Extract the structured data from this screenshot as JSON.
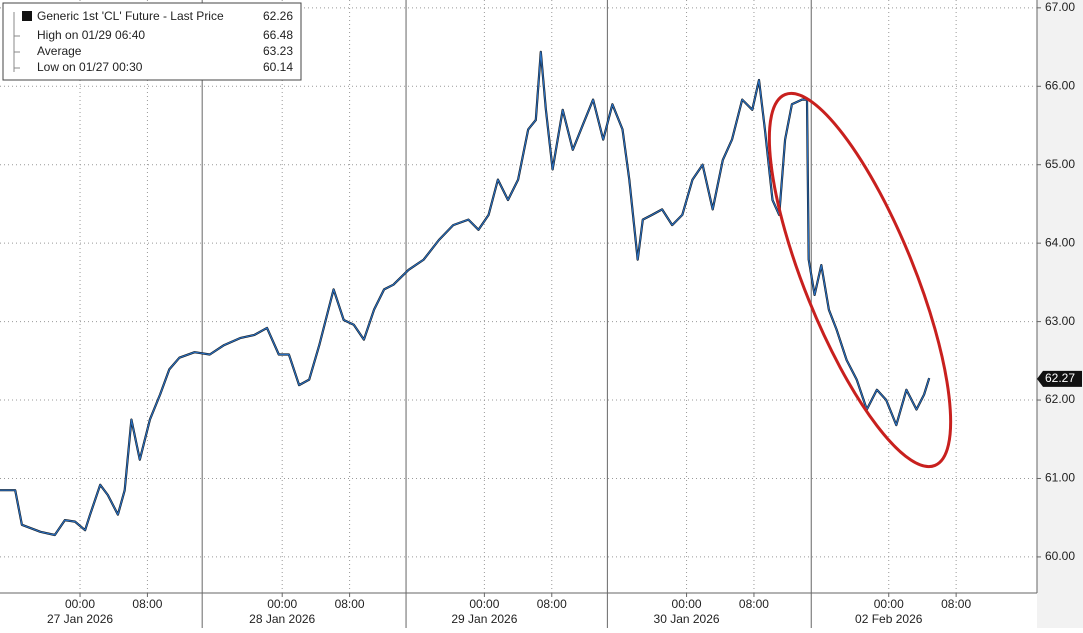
{
  "chart_data": {
    "type": "line",
    "legend": {
      "title": "Generic 1st 'CL' Future - Last Price",
      "title_value": 62.26,
      "rows": [
        {
          "label": "High on 01/29 06:40",
          "value": 66.48
        },
        {
          "label": "Average",
          "value": 63.23
        },
        {
          "label": "Low on 01/27 00:30",
          "value": 60.14
        }
      ]
    },
    "last_price_tag": 62.27,
    "series": [
      {
        "name": "Generic 1st 'CL' Future - Last Price",
        "color": "#2a6fbf",
        "x": [
          -9.5,
          -7.7,
          -6.9,
          -4.7,
          -3.0,
          -1.8,
          -0.6,
          0.6,
          1.2,
          2.4,
          3.3,
          4.5,
          5.3,
          6.1,
          7.1,
          8.3,
          9.5,
          10.6,
          11.8,
          13.6,
          15.4,
          17.1,
          19.0,
          20.7,
          22.2,
          23.6,
          24.8,
          26.0,
          27.2,
          28.4,
          30.1,
          31.3,
          32.5,
          33.7,
          34.9,
          36.1,
          37.2,
          39.0,
          40.8,
          42.6,
          44.3,
          46.1,
          47.3,
          48.5,
          49.6,
          50.8,
          52.0,
          53.2,
          54.1,
          54.7,
          55.3,
          56.1,
          57.3,
          58.5,
          59.7,
          60.9,
          62.1,
          63.2,
          64.4,
          65.2,
          66.2,
          66.8,
          67.9,
          69.1,
          70.3,
          71.5,
          72.7,
          73.9,
          75.1,
          76.3,
          77.4,
          78.6,
          79.8,
          80.6,
          81.3,
          82.2,
          83.0,
          83.7,
          84.5,
          85.7,
          86.3,
          86.5,
          87.2,
          88.0,
          88.9,
          89.8,
          91.0,
          92.2,
          93.4,
          94.6,
          95.7,
          96.9,
          98.1,
          99.3,
          100.2,
          100.8
        ],
        "values": [
          60.85,
          60.85,
          60.41,
          60.32,
          60.28,
          60.47,
          60.45,
          60.34,
          60.54,
          60.92,
          60.79,
          60.54,
          60.85,
          61.75,
          61.24,
          61.75,
          62.07,
          62.39,
          62.54,
          62.61,
          62.58,
          62.7,
          62.79,
          62.83,
          62.92,
          62.58,
          62.58,
          62.19,
          62.26,
          62.7,
          63.41,
          63.02,
          62.96,
          62.77,
          63.15,
          63.41,
          63.47,
          63.66,
          63.79,
          64.04,
          64.23,
          64.3,
          64.17,
          64.36,
          64.81,
          64.55,
          64.81,
          65.45,
          65.57,
          66.44,
          65.7,
          64.94,
          65.7,
          65.19,
          65.51,
          65.83,
          65.32,
          65.77,
          65.45,
          64.81,
          63.79,
          64.3,
          64.36,
          64.43,
          64.23,
          64.36,
          64.81,
          65.0,
          64.43,
          65.06,
          65.32,
          65.83,
          65.7,
          66.08,
          65.45,
          64.55,
          64.36,
          65.32,
          65.77,
          65.83,
          65.83,
          63.79,
          63.34,
          63.72,
          63.15,
          62.9,
          62.51,
          62.26,
          61.88,
          62.13,
          62.0,
          61.68,
          62.13,
          61.88,
          62.07,
          62.28
        ]
      }
    ],
    "xlim": [
      -9.5,
      113.6
    ],
    "xticks": [
      {
        "value": 0,
        "label": "00:00"
      },
      {
        "value": 8,
        "label": "08:00"
      },
      {
        "value": 24,
        "label": "00:00"
      },
      {
        "value": 32,
        "label": "08:00"
      },
      {
        "value": 48,
        "label": "00:00"
      },
      {
        "value": 56,
        "label": "08:00"
      },
      {
        "value": 72,
        "label": "00:00"
      },
      {
        "value": 80,
        "label": "08:00"
      },
      {
        "value": 96,
        "label": "00:00"
      },
      {
        "value": 104,
        "label": "08:00"
      }
    ],
    "date_labels": [
      {
        "value": 0,
        "label": "27 Jan 2026"
      },
      {
        "value": 24,
        "label": "28 Jan 2026"
      },
      {
        "value": 48,
        "label": "29 Jan 2026"
      },
      {
        "value": 72,
        "label": "30 Jan 2026"
      },
      {
        "value": 96,
        "label": "02 Feb 2026"
      }
    ],
    "xbreaks": [
      14.5,
      38.7,
      62.6,
      86.8
    ],
    "ylim": [
      59.54,
      67.1
    ],
    "yticks": [
      {
        "value": 60,
        "label": "60.00"
      },
      {
        "value": 61,
        "label": "61.00"
      },
      {
        "value": 62,
        "label": "62.00"
      },
      {
        "value": 63,
        "label": "63.00"
      },
      {
        "value": 64,
        "label": "64.00"
      },
      {
        "value": 65,
        "label": "65.00"
      },
      {
        "value": 66,
        "label": "66.00"
      },
      {
        "value": 67,
        "label": "67.00"
      }
    ],
    "grid": true
  }
}
